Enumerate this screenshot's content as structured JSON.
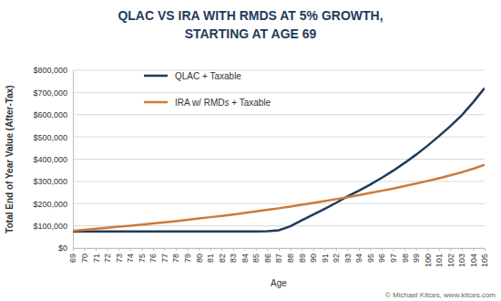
{
  "chart_data": {
    "type": "line",
    "title": [
      "QLAC VS IRA WITH RMDS AT 5% GROWTH,",
      "STARTING AT AGE 69"
    ],
    "x_label": "Age",
    "y_label": "Total End of Year Value (After-Tax)",
    "annotation": "© Michael Kitces, www.kitces.com",
    "x": [
      69,
      70,
      71,
      72,
      73,
      74,
      75,
      76,
      77,
      78,
      79,
      80,
      81,
      82,
      83,
      84,
      85,
      86,
      87,
      88,
      89,
      90,
      91,
      92,
      93,
      94,
      95,
      96,
      97,
      98,
      99,
      100,
      101,
      102,
      103,
      104,
      105
    ],
    "xlim": [
      69,
      105
    ],
    "xticks": [
      69,
      70,
      71,
      72,
      73,
      74,
      75,
      76,
      77,
      78,
      79,
      80,
      81,
      82,
      83,
      84,
      85,
      86,
      87,
      88,
      89,
      90,
      91,
      92,
      93,
      94,
      95,
      96,
      97,
      98,
      99,
      100,
      101,
      102,
      103,
      104,
      105
    ],
    "ylim": [
      0,
      800000
    ],
    "yticks": [
      {
        "value": 0,
        "label": "$0"
      },
      {
        "value": 100000,
        "label": "$100,000"
      },
      {
        "value": 200000,
        "label": "$200,000"
      },
      {
        "value": 300000,
        "label": "$300,000"
      },
      {
        "value": 400000,
        "label": "$400,000"
      },
      {
        "value": 500000,
        "label": "$500,000"
      },
      {
        "value": 600000,
        "label": "$600,000"
      },
      {
        "value": 700000,
        "label": "$700,000"
      },
      {
        "value": 800000,
        "label": "$800,000"
      }
    ],
    "grid": true,
    "legend": "upper left",
    "series": [
      {
        "name": "QLAC + Taxable",
        "color": "#1f3b5a",
        "line_style": "solid",
        "values": [
          75000,
          75000,
          75000,
          75000,
          75000,
          75000,
          75000,
          75000,
          75000,
          75000,
          75000,
          75000,
          75000,
          75000,
          75000,
          75000,
          75000,
          76000,
          80000,
          98000,
          125000,
          150000,
          176000,
          203000,
          232000,
          258000,
          286000,
          316000,
          348000,
          383000,
          420000,
          460000,
          503000,
          548000,
          597000,
          656000,
          720000
        ]
      },
      {
        "name": "IRA w/ RMDs + Taxable",
        "color": "#cc7a3b",
        "line_style": "solid",
        "values": [
          78000,
          82000,
          87000,
          91000,
          96000,
          101000,
          106000,
          111000,
          116000,
          121000,
          127000,
          133000,
          139000,
          145000,
          151000,
          158000,
          165000,
          172000,
          179000,
          187000,
          195000,
          203000,
          211000,
          220000,
          229000,
          238000,
          248000,
          258000,
          268000,
          279000,
          290000,
          302000,
          314000,
          327000,
          341000,
          357000,
          375000
        ]
      }
    ]
  }
}
